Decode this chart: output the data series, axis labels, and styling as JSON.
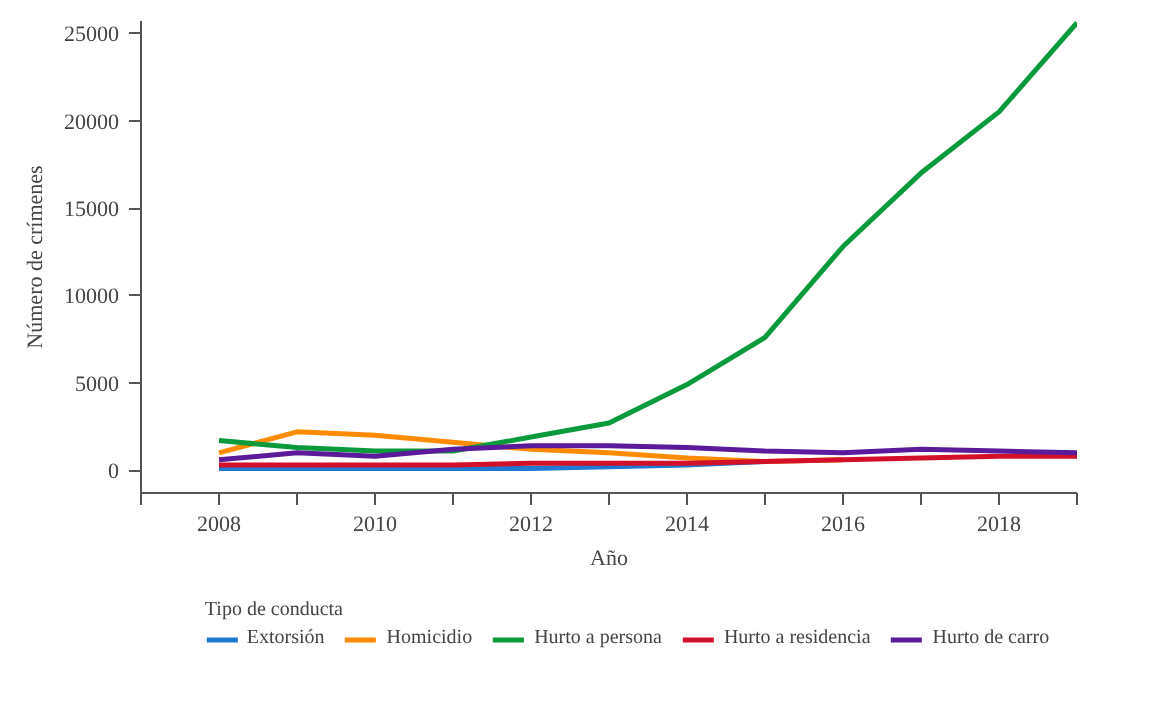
{
  "chart_data": {
    "type": "line",
    "xlabel": "Año",
    "ylabel": "Número de crímenes",
    "legend_title": "Tipo de conducta",
    "x": [
      2008,
      2009,
      2010,
      2011,
      2012,
      2013,
      2014,
      2015,
      2016,
      2017,
      2018,
      2019
    ],
    "xlim": [
      2007,
      2019
    ],
    "xticks": [
      {
        "value": 2007,
        "label": null
      },
      2008,
      {
        "value": 2009,
        "label": null
      },
      2010,
      {
        "value": 2011,
        "label": null
      },
      2012,
      {
        "value": 2013,
        "label": null
      },
      2014,
      {
        "value": 2015,
        "label": null
      },
      2016,
      {
        "value": 2017,
        "label": null
      },
      2018,
      {
        "value": 2019,
        "label": null
      }
    ],
    "ylim": [
      -1300,
      25700
    ],
    "yticks": [
      0,
      5000,
      10000,
      15000,
      20000,
      25000
    ],
    "grid": false,
    "legend": "bottom",
    "marker": "none",
    "line_style": "solid",
    "series": [
      {
        "name": "Extorsión",
        "color": "#1f78d1",
        "values": [
          100,
          100,
          100,
          100,
          100,
          200,
          300,
          500,
          null,
          null,
          null,
          null
        ]
      },
      {
        "name": "Homicidio",
        "color": "#ff8c00",
        "values": [
          1000,
          2200,
          2000,
          1600,
          1200,
          1000,
          700,
          500,
          600,
          null,
          null,
          null
        ]
      },
      {
        "name": "Hurto a persona",
        "color": "#0a9a3c",
        "values": [
          1700,
          1300,
          1100,
          1100,
          1900,
          2700,
          4900,
          7600,
          12800,
          17000,
          20500,
          25600
        ]
      },
      {
        "name": "Hurto a residencia",
        "color": "#d2102a",
        "values": [
          300,
          300,
          300,
          300,
          400,
          400,
          400,
          500,
          600,
          700,
          800,
          800
        ]
      },
      {
        "name": "Hurto de carro",
        "color": "#5a1a9a",
        "values": [
          600,
          1000,
          800,
          1200,
          1400,
          1400,
          1300,
          1100,
          1000,
          1200,
          1100,
          1000
        ]
      }
    ]
  }
}
